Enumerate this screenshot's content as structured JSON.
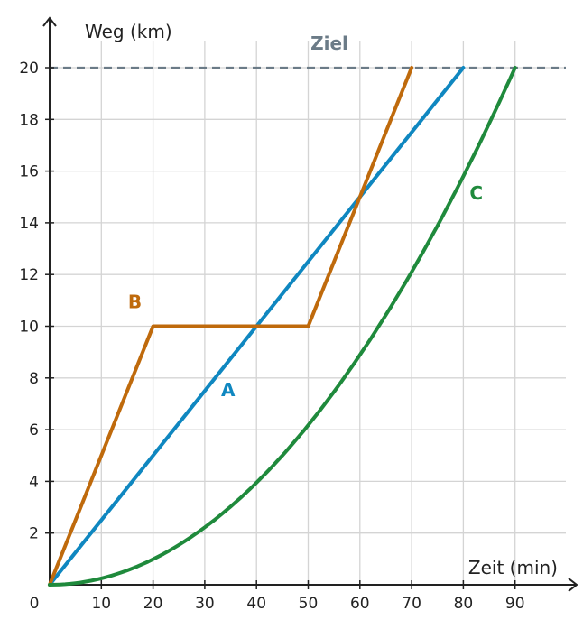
{
  "chart_data": {
    "type": "line",
    "title": "",
    "xlabel": "Zeit (min)",
    "ylabel": "Weg (km)",
    "xlim": [
      0,
      95
    ],
    "ylim": [
      0,
      20.5
    ],
    "origin_label": "0",
    "x_ticks": [
      10,
      20,
      30,
      40,
      50,
      60,
      70,
      80,
      90
    ],
    "y_ticks": [
      2,
      4,
      6,
      8,
      10,
      12,
      14,
      16,
      18,
      20
    ],
    "grid": true,
    "target_line": {
      "label": "Ziel",
      "y": 20,
      "color": "#6b7b87"
    },
    "series": [
      {
        "name": "A",
        "color": "#0f87c0",
        "label_at": {
          "x": 34.5,
          "y": 7.3
        },
        "points": [
          [
            0,
            0
          ],
          [
            80,
            20
          ]
        ]
      },
      {
        "name": "B",
        "color": "#bf6a0c",
        "label_at": {
          "x": 16.5,
          "y": 10.7
        },
        "points": [
          [
            0,
            0
          ],
          [
            20,
            10
          ],
          [
            50,
            10
          ],
          [
            70,
            20
          ]
        ]
      },
      {
        "name": "C",
        "color": "#1f8a3c",
        "label_at": {
          "x": 82.5,
          "y": 14.9
        },
        "curve": "y = 20 * (x / 90)^2",
        "points": [
          [
            0,
            0
          ],
          [
            10,
            0.25
          ],
          [
            20,
            0.99
          ],
          [
            30,
            2.22
          ],
          [
            40,
            3.95
          ],
          [
            50,
            6.17
          ],
          [
            60,
            8.89
          ],
          [
            70,
            12.1
          ],
          [
            80,
            15.8
          ],
          [
            90,
            20
          ]
        ]
      }
    ]
  }
}
